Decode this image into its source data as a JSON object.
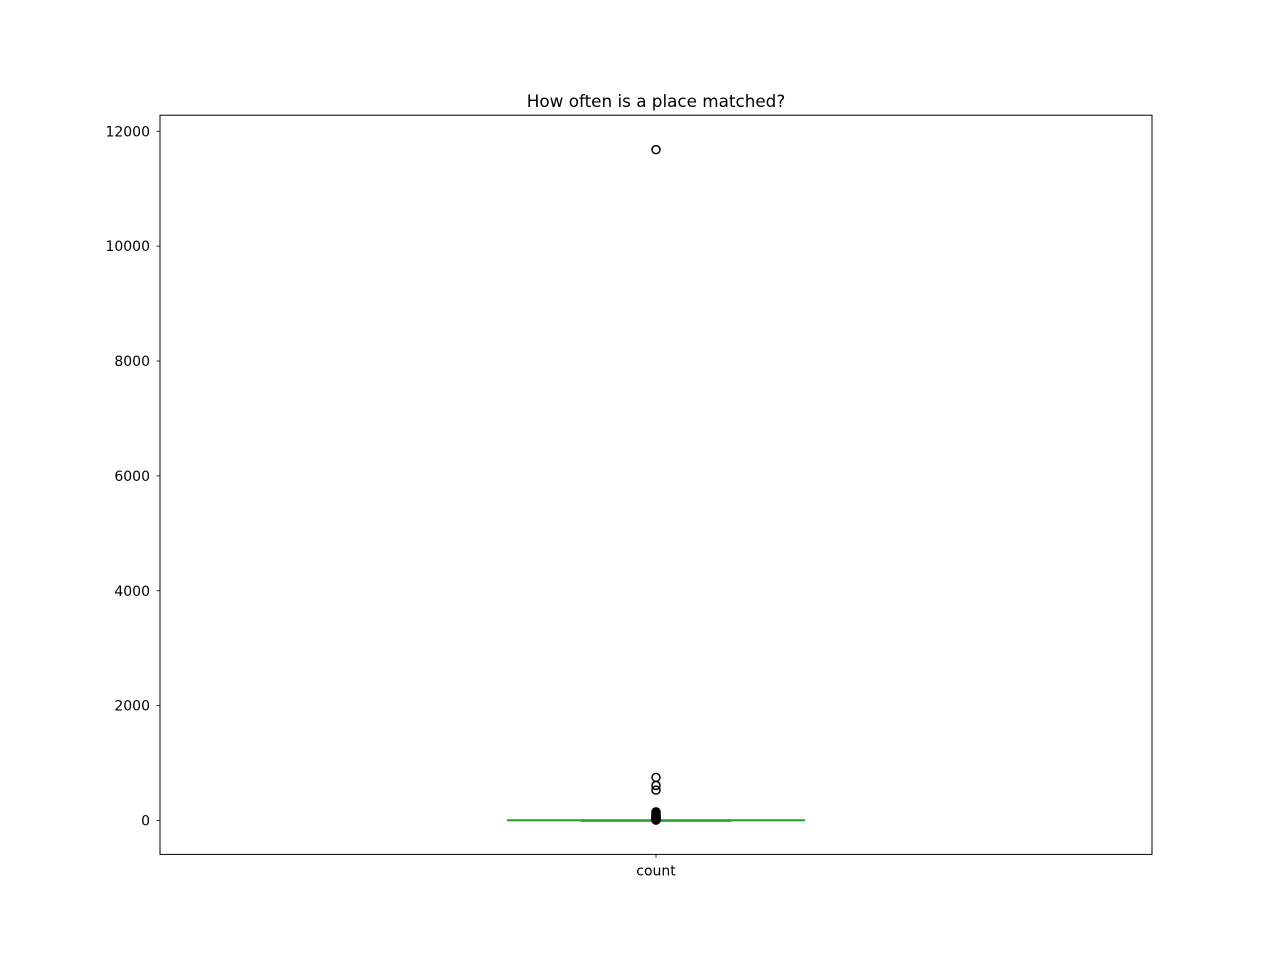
{
  "chart_data": {
    "type": "box",
    "title": "How often is a place matched?",
    "xlabel": "",
    "ylabel": "",
    "categories": [
      "count"
    ],
    "ylim": [
      -590,
      12280
    ],
    "yticks": [
      0,
      2000,
      4000,
      6000,
      8000,
      10000,
      12000
    ],
    "grid": false,
    "boxes": [
      {
        "name": "count",
        "whisker_low": 1,
        "q1": 1,
        "median": 2,
        "q3": 4,
        "whisker_high": 8,
        "outliers": [
          11680,
          750,
          610,
          530,
          150,
          130,
          110,
          95,
          85,
          70,
          60,
          50,
          40,
          30,
          25,
          20,
          15,
          12,
          10,
          9
        ]
      }
    ],
    "colors": {
      "box": "#1f77b4",
      "median": "#2ca02c",
      "flier_edge": "#000000"
    }
  }
}
